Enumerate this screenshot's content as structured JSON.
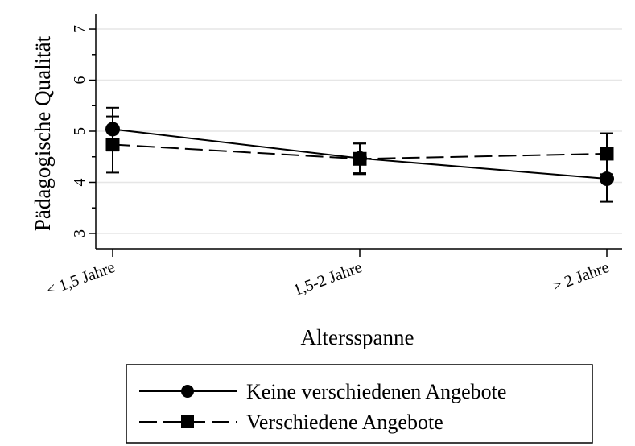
{
  "chart_data": {
    "type": "line",
    "title": "",
    "xlabel": "Altersspanne",
    "ylabel": "Pädagogische Qualität",
    "categories": [
      "< 1,5 Jahre",
      "1,5-2 Jahre",
      "> 2 Jahre"
    ],
    "yticks": [
      "3",
      "4",
      "5",
      "6",
      "7"
    ],
    "ylim": [
      2.7,
      7.3
    ],
    "grid": true,
    "legend_position": "bottom",
    "series": [
      {
        "name": "Keine verschiedenen Angebote",
        "marker": "circle",
        "line_style": "solid",
        "values": [
          5.04,
          4.47,
          4.07
        ],
        "ci_low": [
          4.62,
          4.18,
          3.62
        ],
        "ci_high": [
          5.46,
          4.76,
          4.52
        ]
      },
      {
        "name": "Verschiedene Angebote",
        "marker": "square",
        "line_style": "dashed",
        "values": [
          4.74,
          4.46,
          4.56
        ],
        "ci_low": [
          4.19,
          4.16,
          4.16
        ],
        "ci_high": [
          5.29,
          4.76,
          4.96
        ]
      }
    ]
  }
}
